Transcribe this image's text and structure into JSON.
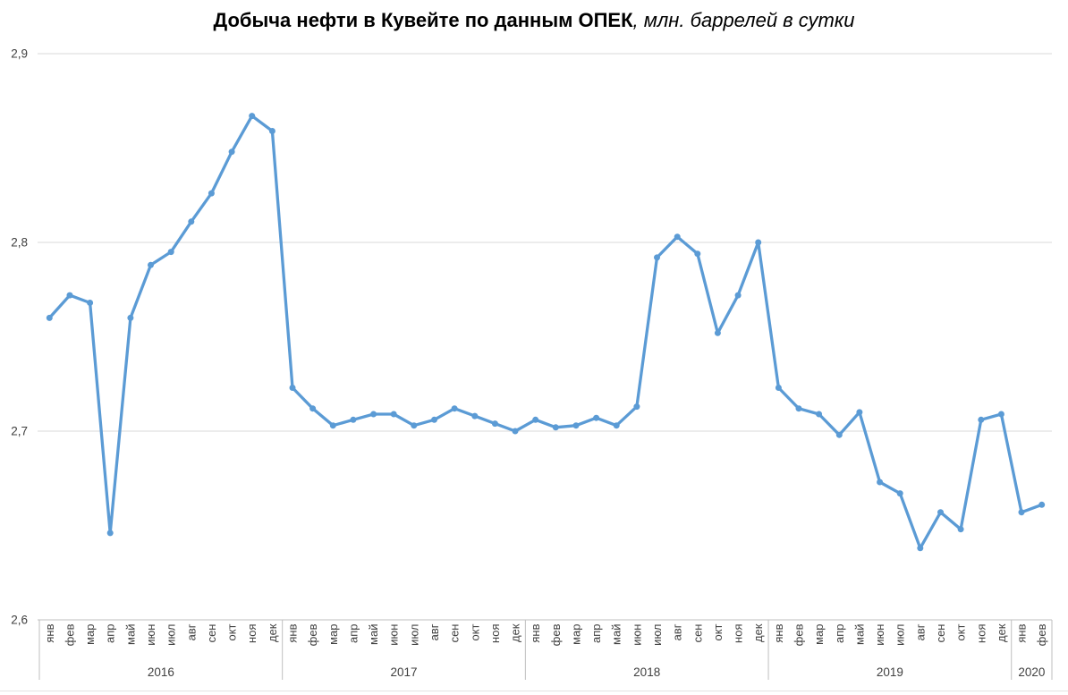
{
  "title": {
    "bold": "Добыча нефти в Кувейте по данным ОПЕК",
    "italic": ", млн. баррелей в сутки"
  },
  "chart_data": {
    "type": "line",
    "title": "Добыча нефти в Кувейте по данным ОПЕК, млн. баррелей в сутки",
    "ylabel": "млн. баррелей в сутки",
    "xlabel": "",
    "legend": "none",
    "grid": "horizontal",
    "ylim": [
      2.6,
      2.9
    ],
    "line_color": "#5B9BD5",
    "grid_color": "#D9D9D9",
    "axis_color": "#BFBFBF",
    "label_color": "#404040",
    "y_ticks": [
      {
        "value": 2.9,
        "label": "2,9"
      },
      {
        "value": 2.8,
        "label": "2,8"
      },
      {
        "value": 2.7,
        "label": "2,7"
      },
      {
        "value": 2.6,
        "label": "2,6"
      }
    ],
    "groups": [
      {
        "year": "2016",
        "months": [
          "янв",
          "фев",
          "мар",
          "апр",
          "май",
          "июн",
          "июл",
          "авг",
          "сен",
          "окт",
          "ноя",
          "дек"
        ],
        "values": [
          2.76,
          2.772,
          2.768,
          2.646,
          2.76,
          2.788,
          2.795,
          2.811,
          2.826,
          2.848,
          2.867,
          2.859
        ]
      },
      {
        "year": "2017",
        "months": [
          "янв",
          "фев",
          "мар",
          "апр",
          "май",
          "июн",
          "июл",
          "авг",
          "сен",
          "окт",
          "ноя",
          "дек"
        ],
        "values": [
          2.723,
          2.712,
          2.703,
          2.706,
          2.709,
          2.709,
          2.703,
          2.706,
          2.712,
          2.708,
          2.704,
          2.7
        ]
      },
      {
        "year": "2018",
        "months": [
          "янв",
          "фев",
          "мар",
          "апр",
          "май",
          "июн",
          "июл",
          "авг",
          "сен",
          "окт",
          "ноя",
          "дек"
        ],
        "values": [
          2.706,
          2.702,
          2.703,
          2.707,
          2.703,
          2.713,
          2.792,
          2.803,
          2.794,
          2.752,
          2.772,
          2.8
        ]
      },
      {
        "year": "2019",
        "months": [
          "янв",
          "фев",
          "мар",
          "апр",
          "май",
          "июн",
          "июл",
          "авг",
          "сен",
          "окт",
          "ноя",
          "дек"
        ],
        "values": [
          2.723,
          2.712,
          2.709,
          2.698,
          2.71,
          2.673,
          2.667,
          2.638,
          2.657,
          2.648,
          2.706,
          2.709
        ]
      },
      {
        "year": "2020",
        "months": [
          "янв",
          "фев"
        ],
        "values": [
          2.657,
          2.661
        ]
      }
    ]
  }
}
